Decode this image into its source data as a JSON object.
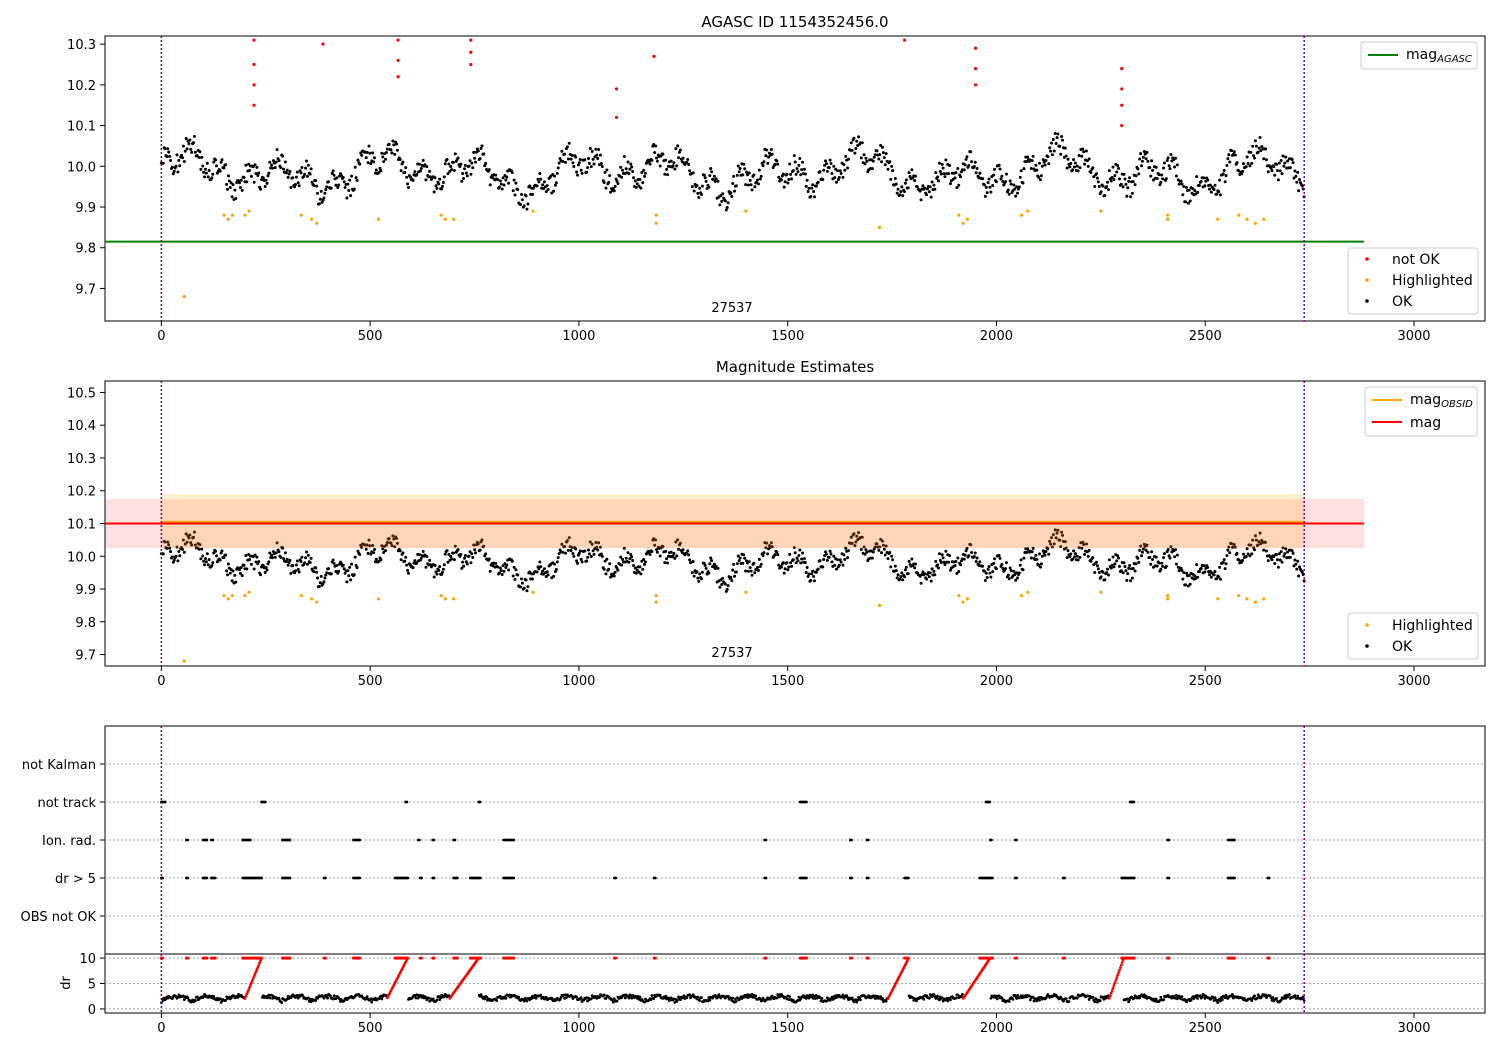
{
  "chart_data": [
    {
      "type": "scatter",
      "title": "AGASC ID 1154352456.0",
      "annotation": "27537",
      "xlim": [
        -135,
        3170
      ],
      "ylim": [
        9.62,
        10.32
      ],
      "xticks": [
        0,
        500,
        1000,
        1500,
        2000,
        2500,
        3000
      ],
      "yticks": [
        9.7,
        9.8,
        9.9,
        10.0,
        10.1,
        10.2,
        10.3
      ],
      "vlines": [
        0,
        2737
      ],
      "hline": {
        "y": 9.815,
        "x_end": 2880
      },
      "legend_top": [
        {
          "name": "mag_AGASC_label",
          "label": "mag",
          "sub": "AGASC",
          "color": "#008000"
        }
      ],
      "legend_bottom": [
        {
          "label": "not OK",
          "color": "#ff0000"
        },
        {
          "label": "Highlighted",
          "color": "#ffa500"
        },
        {
          "label": "OK",
          "color": "#000000"
        }
      ],
      "red_points": [
        [
          222,
          10.31
        ],
        [
          222,
          10.25
        ],
        [
          222,
          10.2
        ],
        [
          222,
          10.15
        ],
        [
          387,
          10.3
        ],
        [
          567,
          10.31
        ],
        [
          567,
          10.26
        ],
        [
          567,
          10.22
        ],
        [
          741,
          10.31
        ],
        [
          741,
          10.28
        ],
        [
          741,
          10.25
        ],
        [
          1090,
          10.19
        ],
        [
          1090,
          10.12
        ],
        [
          1180,
          10.27
        ],
        [
          1780,
          10.31
        ],
        [
          1950,
          10.29
        ],
        [
          1950,
          10.24
        ],
        [
          1950,
          10.2
        ],
        [
          2300,
          10.24
        ],
        [
          2300,
          10.19
        ],
        [
          2300,
          10.15
        ],
        [
          2300,
          10.1
        ]
      ],
      "orange_points": [
        [
          55,
          9.68
        ],
        [
          150,
          9.88
        ],
        [
          160,
          9.87
        ],
        [
          170,
          9.88
        ],
        [
          200,
          9.88
        ],
        [
          210,
          9.89
        ],
        [
          335,
          9.88
        ],
        [
          360,
          9.87
        ],
        [
          372,
          9.86
        ],
        [
          520,
          9.87
        ],
        [
          670,
          9.88
        ],
        [
          680,
          9.87
        ],
        [
          700,
          9.87
        ],
        [
          890,
          9.89
        ],
        [
          1185,
          9.88
        ],
        [
          1185,
          9.86
        ],
        [
          1400,
          9.89
        ],
        [
          1720,
          9.85
        ],
        [
          1910,
          9.88
        ],
        [
          1920,
          9.86
        ],
        [
          1930,
          9.87
        ],
        [
          2060,
          9.88
        ],
        [
          2075,
          9.89
        ],
        [
          2250,
          9.89
        ],
        [
          2410,
          9.88
        ],
        [
          2410,
          9.87
        ],
        [
          2530,
          9.87
        ],
        [
          2580,
          9.88
        ],
        [
          2600,
          9.87
        ],
        [
          2620,
          9.86
        ],
        [
          2640,
          9.87
        ]
      ],
      "ok_series": {
        "segments": [
          [
            0,
            2737
          ]
        ],
        "base": 9.98
      }
    },
    {
      "type": "scatter",
      "title": "Magnitude Estimates",
      "annotation": "27537",
      "xlim": [
        -135,
        3170
      ],
      "ylim": [
        9.665,
        10.535
      ],
      "xticks": [
        0,
        500,
        1000,
        1500,
        2000,
        2500,
        3000
      ],
      "yticks": [
        9.7,
        9.8,
        9.9,
        10.0,
        10.1,
        10.2,
        10.3,
        10.4,
        10.5
      ],
      "vlines": [
        0,
        2737
      ],
      "mag": {
        "value": 10.1,
        "lo": 10.025,
        "hi": 10.175,
        "x_end": 2880
      },
      "mag_obsid": {
        "value": 10.105,
        "lo": 10.025,
        "hi": 10.19,
        "x_end": 2737
      },
      "legend_top": [
        {
          "label": "mag",
          "sub": "OBSID",
          "color": "#ffa500"
        },
        {
          "label": "mag",
          "sub": "",
          "color": "#ff0000"
        }
      ],
      "legend_bottom": [
        {
          "label": "Highlighted",
          "color": "#ffa500"
        },
        {
          "label": "OK",
          "color": "#000000"
        }
      ]
    },
    {
      "type": "scatter",
      "xlim": [
        -135,
        3170
      ],
      "xticks": [
        0,
        500,
        1000,
        1500,
        2000,
        2500,
        3000
      ],
      "flag_labels": [
        "not Kalman",
        "not track",
        "Ion. rad.",
        "dr > 5",
        "OBS not OK"
      ],
      "flags": {
        "not track": [
          [
            0,
            10
          ],
          [
            240,
            250
          ],
          [
            585,
            590
          ],
          [
            760,
            765
          ],
          [
            1530,
            1545
          ],
          [
            1975,
            1985
          ],
          [
            2320,
            2330
          ]
        ],
        "Ion. rad.": [
          [
            60,
            65
          ],
          [
            100,
            110
          ],
          [
            120,
            125
          ],
          [
            195,
            215
          ],
          [
            290,
            310
          ],
          [
            460,
            475
          ],
          [
            615,
            620
          ],
          [
            650,
            655
          ],
          [
            700,
            705
          ],
          [
            820,
            845
          ],
          [
            1445,
            1450
          ],
          [
            1650,
            1655
          ],
          [
            1690,
            1695
          ],
          [
            1985,
            1990
          ],
          [
            2045,
            2050
          ],
          [
            2410,
            2415
          ],
          [
            2555,
            2570
          ]
        ],
        "dr > 5": [
          [
            0,
            5
          ],
          [
            60,
            65
          ],
          [
            100,
            110
          ],
          [
            120,
            130
          ],
          [
            195,
            240
          ],
          [
            290,
            310
          ],
          [
            390,
            395
          ],
          [
            460,
            475
          ],
          [
            560,
            590
          ],
          [
            620,
            625
          ],
          [
            650,
            655
          ],
          [
            700,
            710
          ],
          [
            740,
            765
          ],
          [
            820,
            845
          ],
          [
            1085,
            1090
          ],
          [
            1180,
            1185
          ],
          [
            1445,
            1450
          ],
          [
            1530,
            1545
          ],
          [
            1650,
            1655
          ],
          [
            1690,
            1695
          ],
          [
            1780,
            1790
          ],
          [
            1960,
            1990
          ],
          [
            2045,
            2050
          ],
          [
            2160,
            2165
          ],
          [
            2300,
            2330
          ],
          [
            2410,
            2415
          ],
          [
            2555,
            2570
          ],
          [
            2650,
            2655
          ]
        ]
      },
      "dr_ylabel": "dr",
      "dr_yticks": [
        0,
        5,
        10
      ],
      "dr_ylim": [
        -0.8,
        10.8
      ]
    }
  ]
}
